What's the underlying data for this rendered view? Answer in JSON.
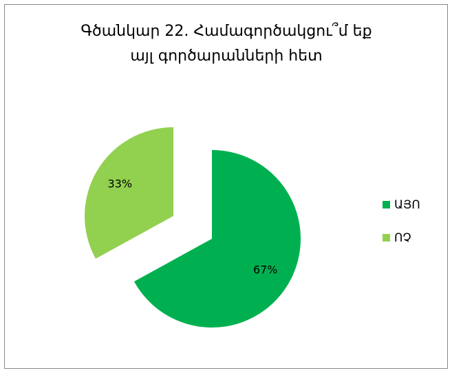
{
  "chart_data": {
    "type": "pie",
    "title": [
      "Գծանկար 22. Համագործակցու՞մ եք",
      "այլ գործարանների հետ"
    ],
    "categories": [
      "ԱՅՈ",
      "ՈՉ"
    ],
    "values": [
      67,
      33
    ],
    "value_labels": [
      "67%",
      "33%"
    ],
    "colors": [
      "#00b050",
      "#92d050"
    ],
    "legend": "right"
  }
}
